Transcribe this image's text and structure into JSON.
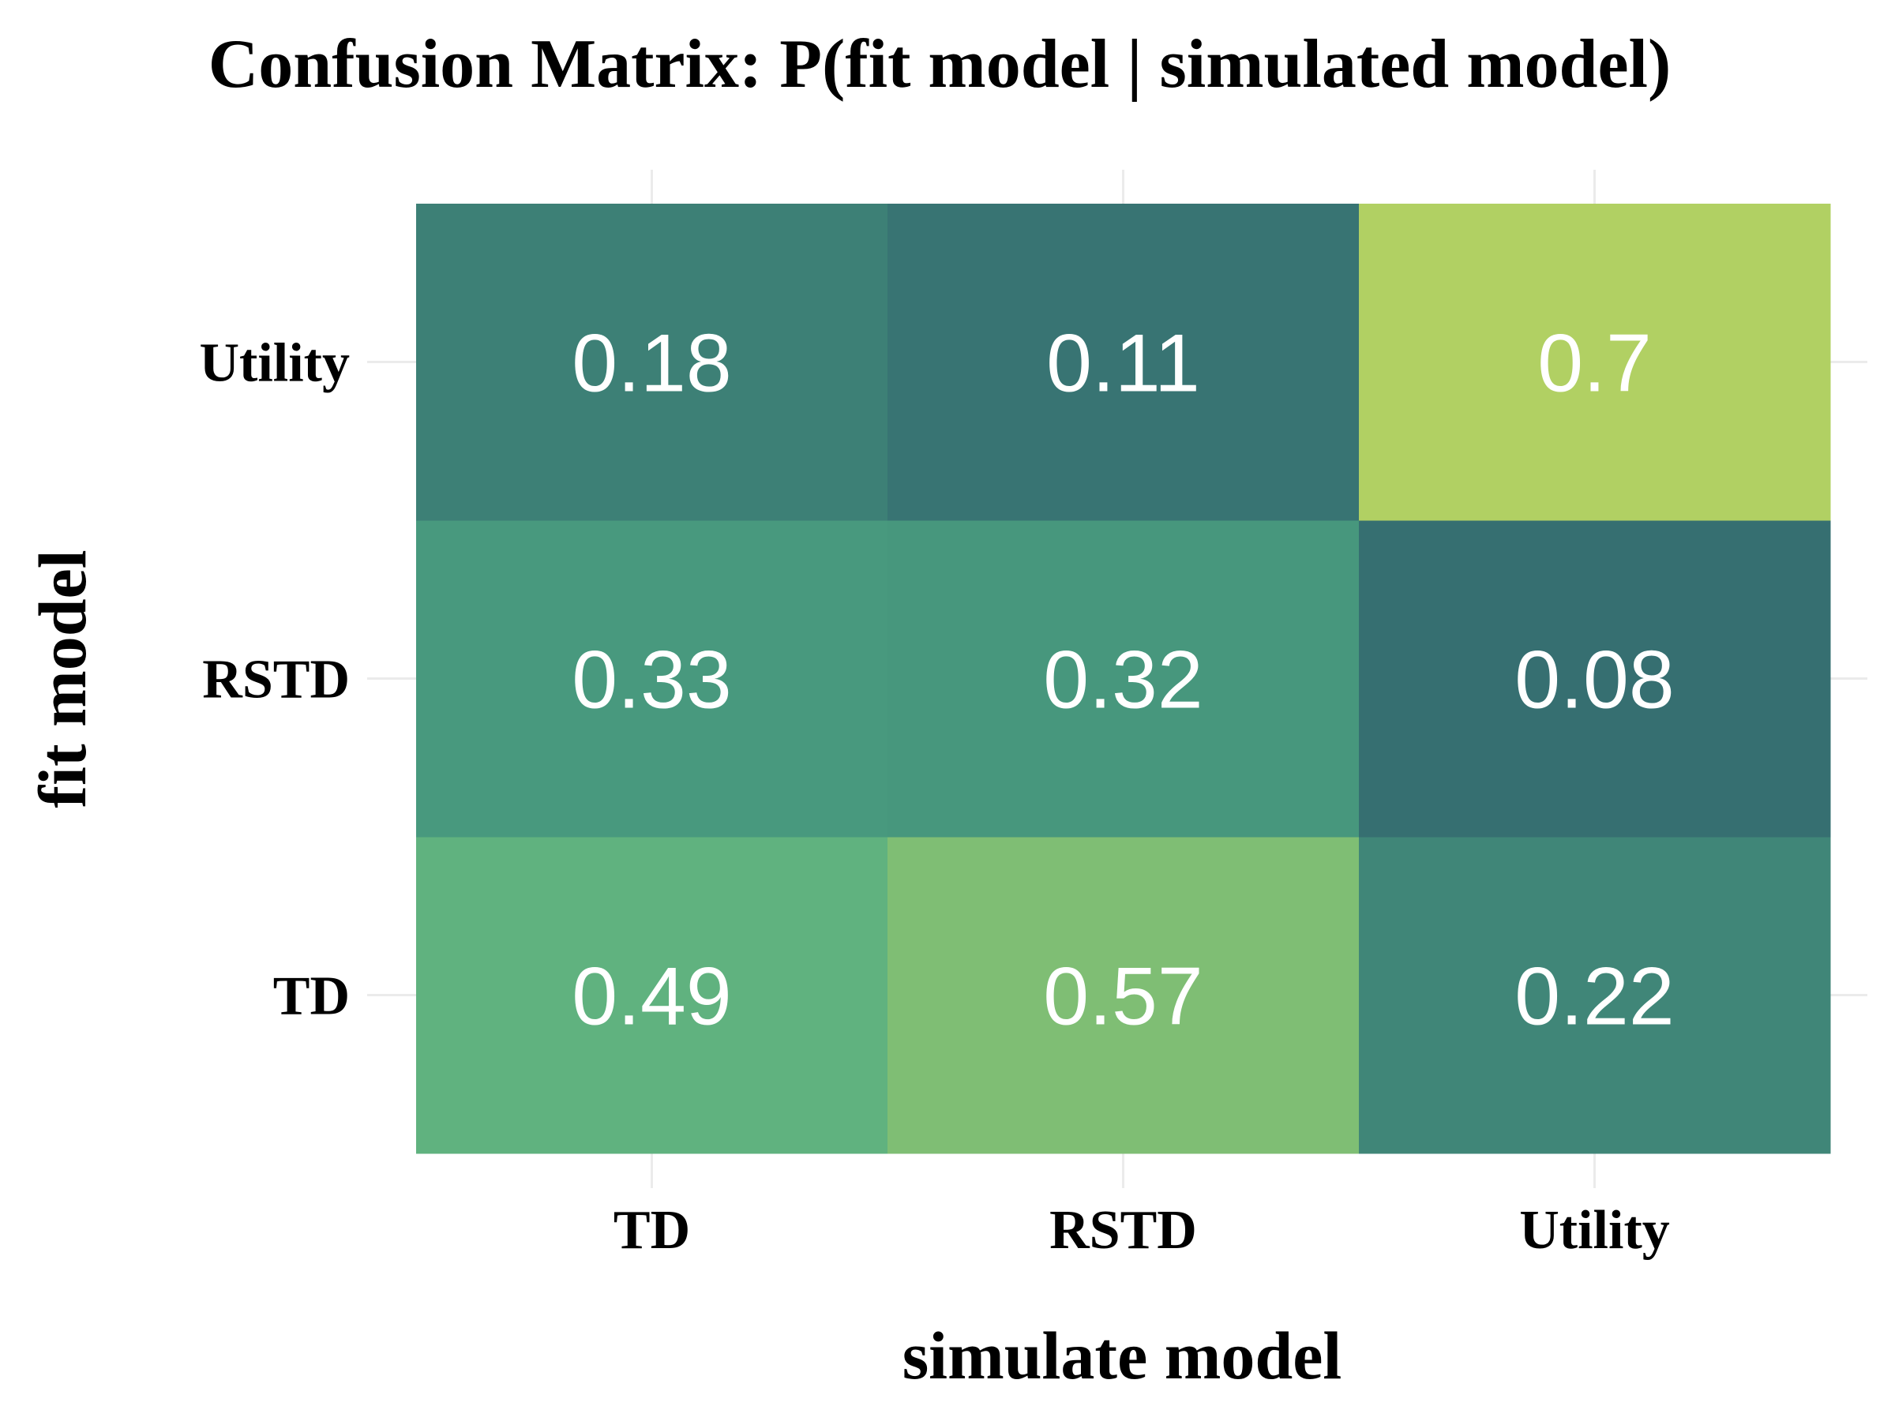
{
  "chart_data": {
    "type": "heatmap",
    "title": "Confusion Matrix: P(fit model | simulated model)",
    "xlabel": "simulate model",
    "ylabel": "fit model",
    "x_categories": [
      "TD",
      "RSTD",
      "Utility"
    ],
    "y_categories": [
      "TD",
      "RSTD",
      "Utility"
    ],
    "values": [
      [
        0.49,
        0.57,
        0.22
      ],
      [
        0.33,
        0.32,
        0.08
      ],
      [
        0.18,
        0.11,
        0.7
      ]
    ],
    "value_labels": [
      [
        "0.49",
        "0.57",
        "0.22"
      ],
      [
        "0.33",
        "0.32",
        "0.08"
      ],
      [
        "0.18",
        "0.11",
        "0.7"
      ]
    ],
    "grid": true,
    "legend": "none",
    "colors": {
      "low": "#366f71",
      "mid": "#51ad84",
      "high": "#b1d063",
      "text": "#ffffff"
    }
  }
}
